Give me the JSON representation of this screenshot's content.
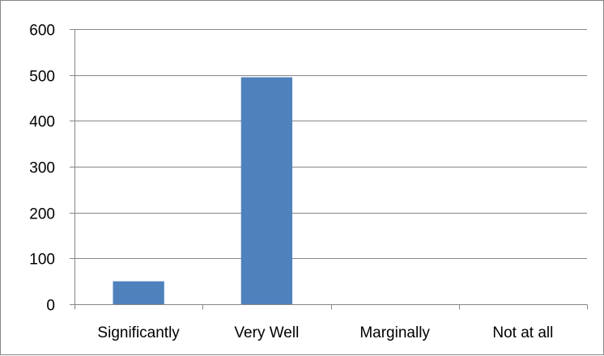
{
  "chart_data": {
    "type": "bar",
    "title": "",
    "xlabel": "",
    "ylabel": "",
    "categories": [
      "Significantly",
      "Very Well",
      "Marginally",
      "Not at all"
    ],
    "values": [
      50,
      495,
      0,
      0
    ],
    "ylim": [
      0,
      600
    ],
    "yticks": [
      0,
      100,
      200,
      300,
      400,
      500,
      600
    ],
    "grid": true,
    "legend": "none",
    "bar_color": "#4f81bd",
    "grid_color": "#868686"
  }
}
